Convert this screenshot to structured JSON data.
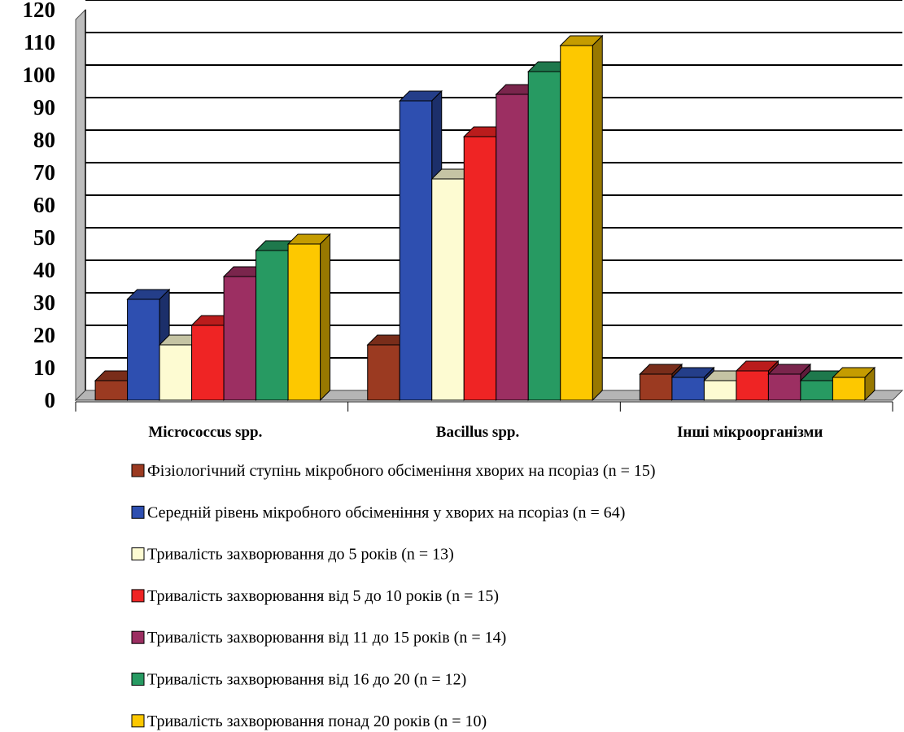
{
  "chart_data": {
    "type": "bar",
    "categories": [
      "Micrococcus spp.",
      "Bacillus  spp.",
      "Інші мікроорганізми"
    ],
    "series": [
      {
        "name": "Фізіологічний ступінь мікробного обсіменіння хворих на псоріаз (n = 15)",
        "values": [
          6,
          17,
          8
        ],
        "color": "#9b3a21"
      },
      {
        "name": "Середній рівень мікробного обсіменіння у хворих на псоріаз (n = 64)",
        "values": [
          31,
          92,
          7
        ],
        "color": "#2e4fb0"
      },
      {
        "name": "Тривалість захворювання до 5 років (n = 13)",
        "values": [
          17,
          68,
          6
        ],
        "color": "#fdfbd2"
      },
      {
        "name": "Тривалість захворювання від 5 до 10 років (n = 15)",
        "values": [
          23,
          81,
          9
        ],
        "color": "#ef2424"
      },
      {
        "name": "Тривалість захворювання від 11 до 15 років (n = 14)",
        "values": [
          38,
          94,
          8
        ],
        "color": "#9c2f62"
      },
      {
        "name": "Тривалість захворювання від 16 до 20 (n = 12)",
        "values": [
          46,
          101,
          6
        ],
        "color": "#279a62"
      },
      {
        "name": "Тривалість захворювання понад 20 років (n = 10)",
        "values": [
          48,
          109,
          7
        ],
        "color": "#fdc800"
      }
    ],
    "yticks": [
      "0",
      "10",
      "20",
      "30",
      "40",
      "50",
      "60",
      "70",
      "80",
      "90",
      "100",
      "110",
      "120"
    ],
    "ylim": [
      0,
      120
    ],
    "grid": true,
    "legend_position": "bottom",
    "title": "",
    "xlabel": "",
    "ylabel": ""
  }
}
